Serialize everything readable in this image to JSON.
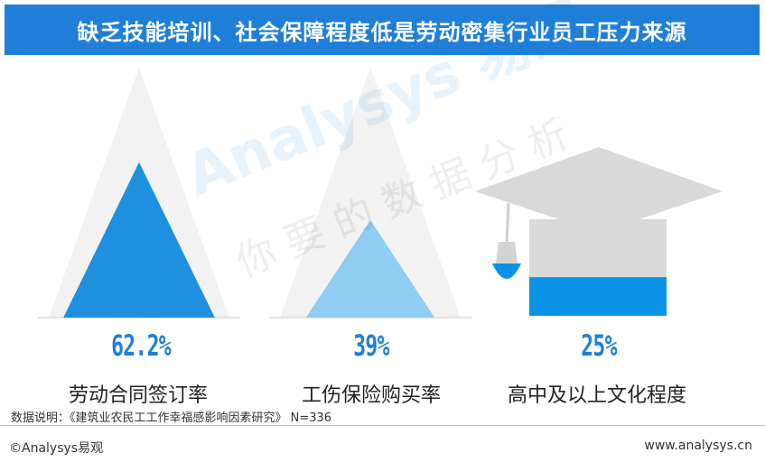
{
  "header": {
    "title": "缺乏技能培训、社会保障程度低是劳动密集行业员工压力来源"
  },
  "colors": {
    "title_bg": "#1f7fd8",
    "triangle_dark": "#1f8fe0",
    "triangle_light": "#8fcdf3",
    "cap_gray": "#d9d9d9",
    "cap_fill": "#0a93e6",
    "value_text": "#1f7fd8",
    "ghost": "#f2f2f2"
  },
  "chart_data": {
    "type": "bar",
    "categories": [
      "劳动合同签订率",
      "工伤保险购买率",
      "高中及以上文化程度"
    ],
    "values": [
      62.2,
      39,
      25
    ],
    "value_labels": [
      "62.2%",
      "39%",
      "25%"
    ],
    "ylim": [
      0,
      100
    ],
    "marks": [
      "triangle",
      "triangle",
      "graduation-cap"
    ]
  },
  "note": "数据说明：《建筑业农民工工作幸福感影响因素研究》 N=336",
  "watermark": {
    "en": "Analysys 易观",
    "cn": "你要的数据分析"
  },
  "footer": {
    "copyright": "©Analysys易观",
    "website": "www.analysys.cn"
  }
}
